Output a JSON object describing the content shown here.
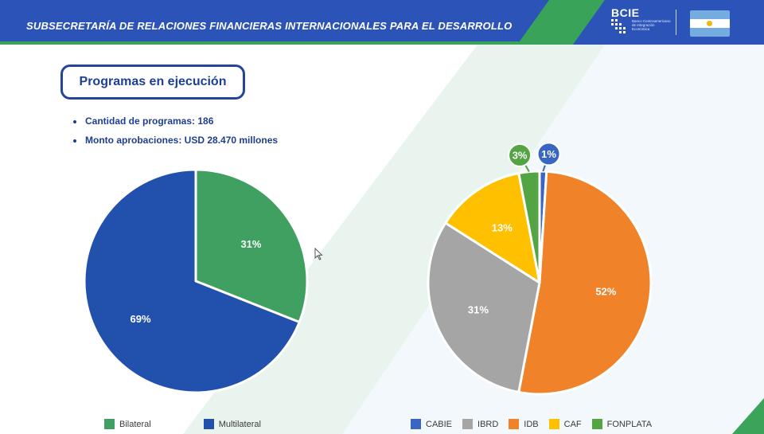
{
  "header": {
    "title": "SUBSECRETARÍA DE RELACIONES FINANCIERAS INTERNACIONALES PARA EL DESARROLLO",
    "logo_text": "BCIE",
    "logo_subtitle": "Banco Centroamericano de Integración Económica",
    "flag": "argentina-flag"
  },
  "programs": {
    "title": "Programas en ejecución",
    "stats": [
      "Cantidad de programas: 186",
      "Monto aprobaciones: USD 28.470 millones"
    ]
  },
  "colors": {
    "header_blue": "#2c54b8",
    "header_green": "#39a35a",
    "bilateral": "#3fa061",
    "multilateral": "#2250ad",
    "cabie": "#3866c2",
    "ibrd": "#a5a5a5",
    "idb": "#f0822a",
    "caf": "#ffc000",
    "fonplata": "#54a444"
  },
  "chart_data": [
    {
      "type": "pie",
      "series": [
        {
          "name": "Bilateral",
          "value": 31,
          "label": "31%",
          "color": "#3fa061"
        },
        {
          "name": "Multilateral",
          "value": 69,
          "label": "69%",
          "color": "#2250ad"
        }
      ]
    },
    {
      "type": "pie",
      "series": [
        {
          "name": "CABIE",
          "value": 1,
          "label": "1%",
          "color": "#3866c2"
        },
        {
          "name": "IDB",
          "value": 52,
          "label": "52%",
          "color": "#f0822a"
        },
        {
          "name": "IBRD",
          "value": 31,
          "label": "31%",
          "color": "#a5a5a5"
        },
        {
          "name": "CAF",
          "value": 13,
          "label": "13%",
          "color": "#ffc000"
        },
        {
          "name": "FONPLATA",
          "value": 3,
          "label": "3%",
          "color": "#54a444"
        }
      ],
      "legend_order": [
        "CABIE",
        "IBRD",
        "IDB",
        "CAF",
        "FONPLATA"
      ]
    }
  ]
}
